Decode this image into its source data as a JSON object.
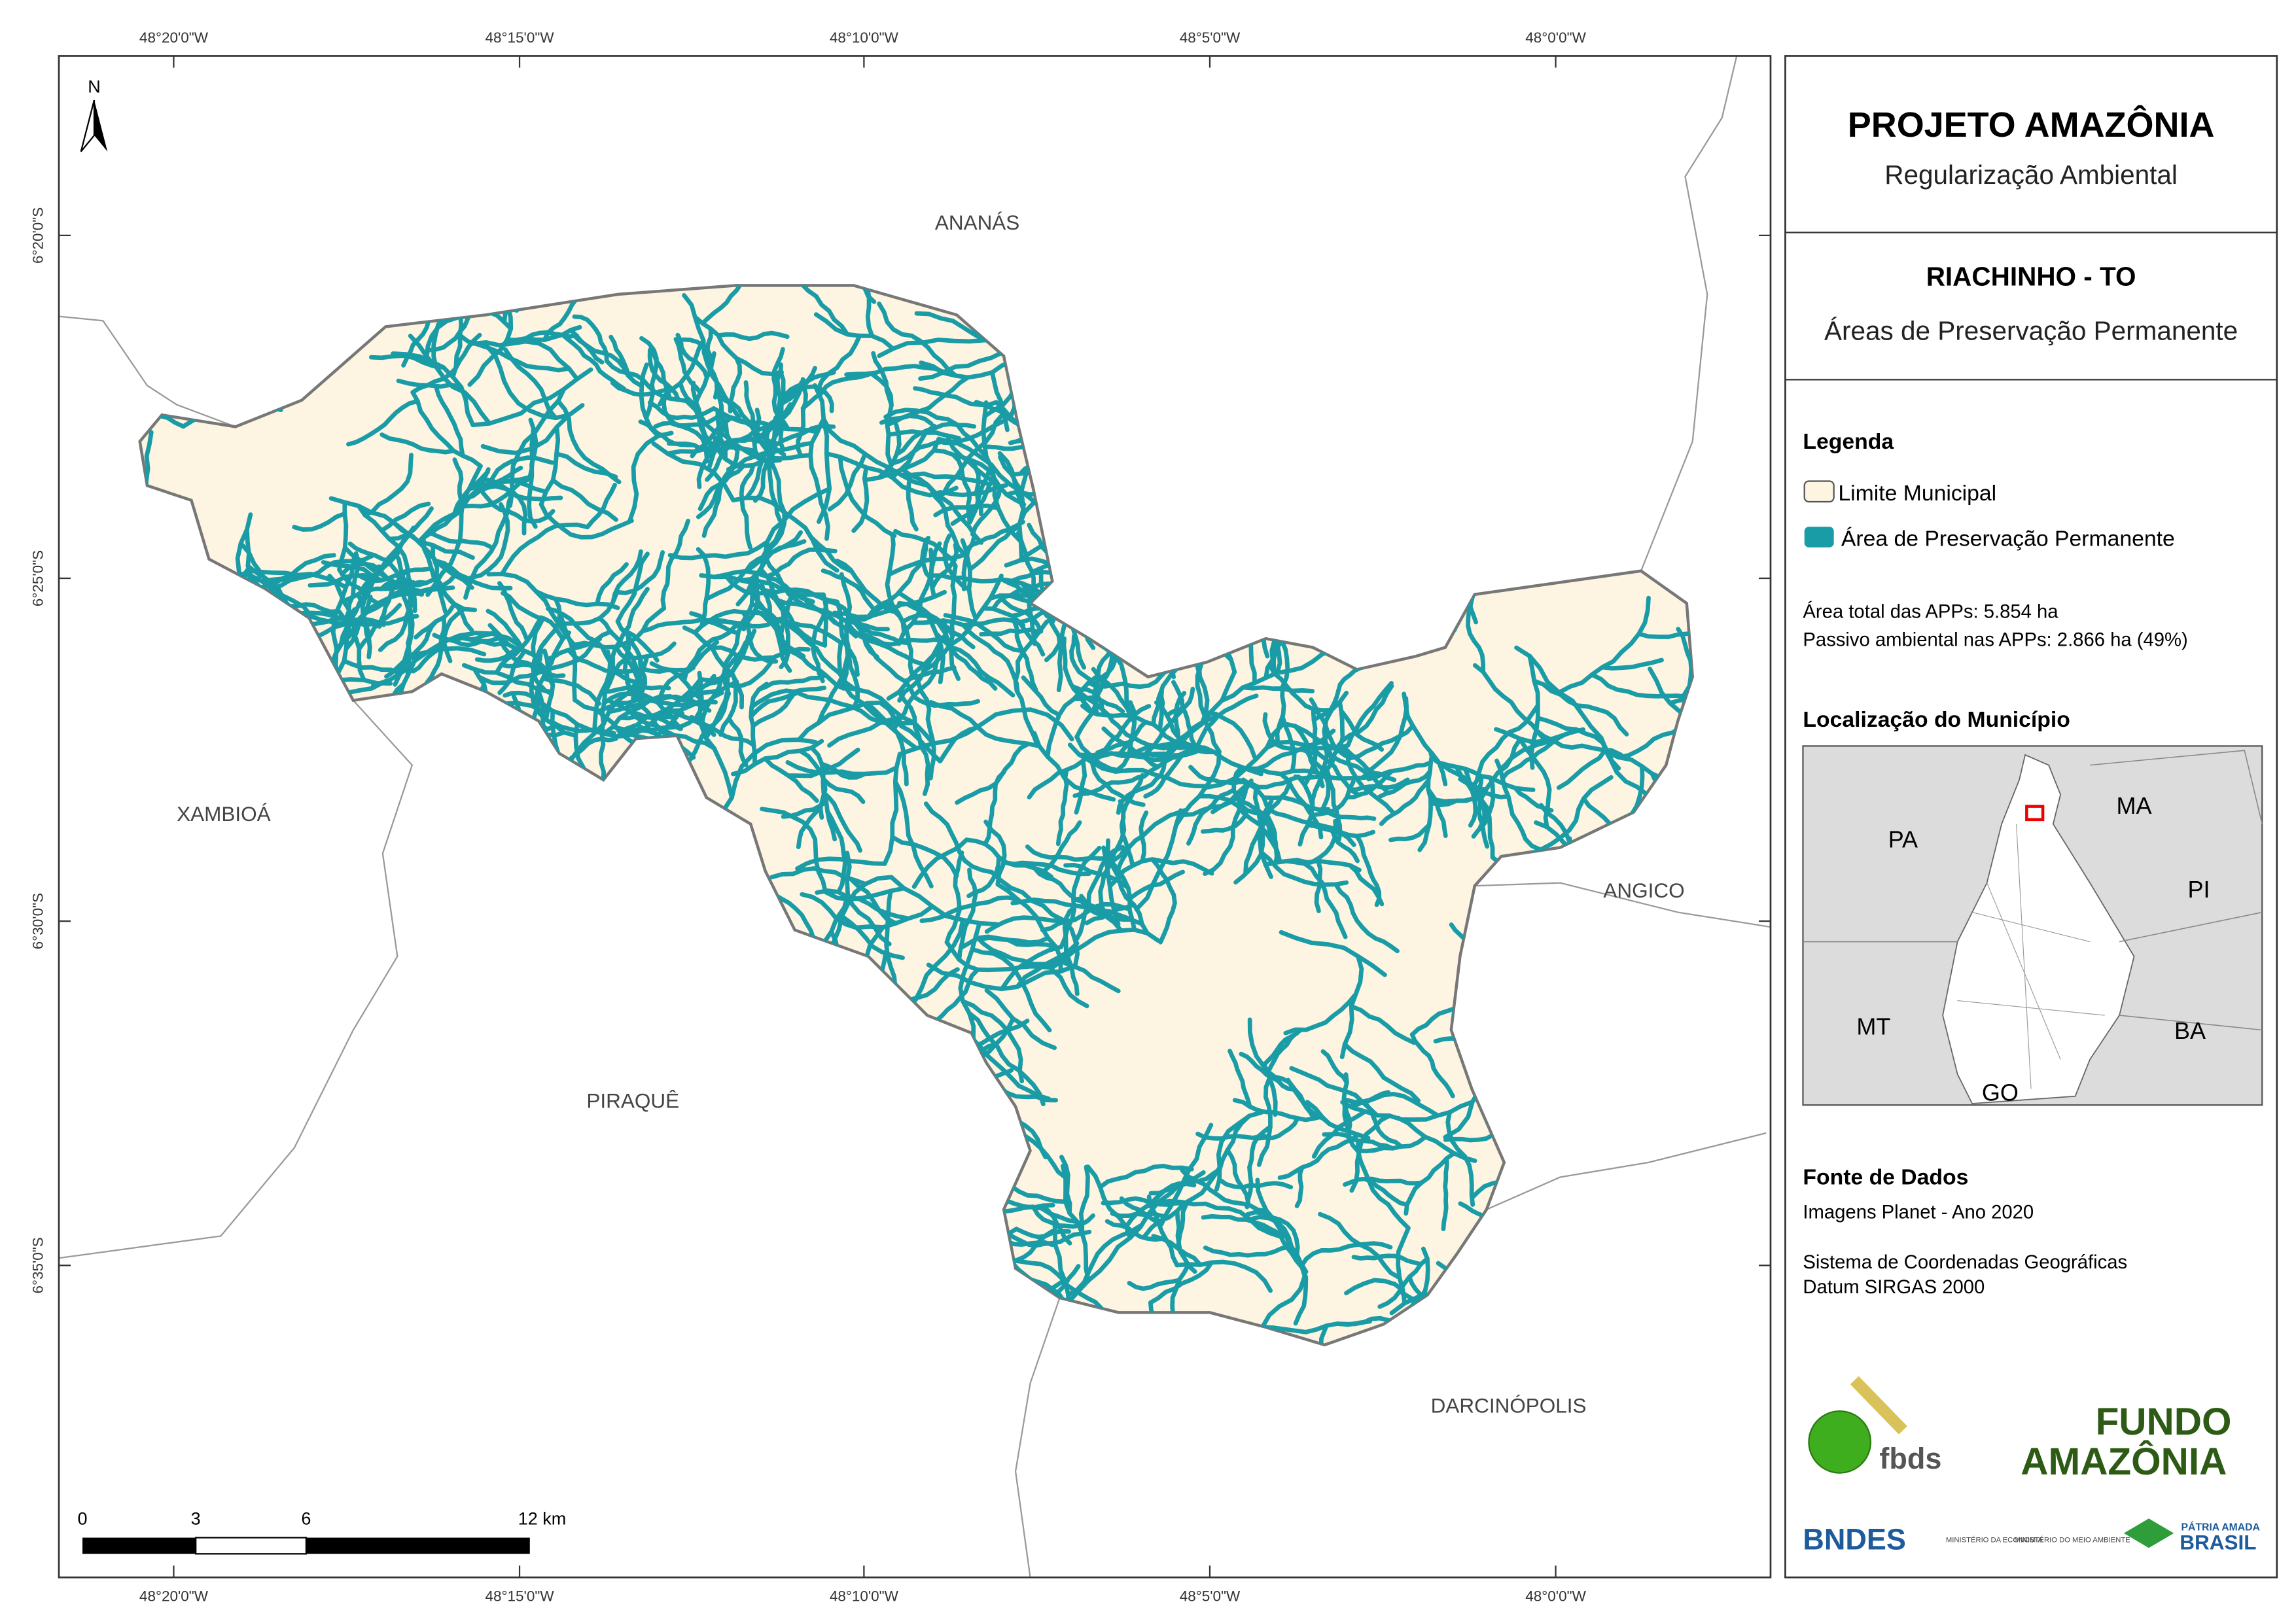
{
  "map": {
    "top_labels": [
      "48°20'0\"W",
      "48°15'0\"W",
      "48°10'0\"W",
      "48°5'0\"W",
      "48°0'0\"W"
    ],
    "bottom_labels": [
      "48°20'0\"W",
      "48°15'0\"W",
      "48°10'0\"W",
      "48°5'0\"W",
      "48°0'0\"W"
    ],
    "left_labels": [
      "6°20'0\"S",
      "6°25'0\"S",
      "6°30'0\"S",
      "6°35'0\"S"
    ],
    "neighbors": [
      "ANANÁS",
      "XAMBIOÁ",
      "ANGICO",
      "PIRAQUÊ",
      "DARCINÓPOLIS"
    ],
    "north": "N",
    "scale_labels": [
      "0",
      "3",
      "6",
      "12 km"
    ]
  },
  "panel": {
    "title": "PROJETO AMAZÔNIA",
    "subtitle": "Regularização Ambiental",
    "municipality": "RIACHINHO - TO",
    "theme": "Áreas de Preservação Permanente",
    "legend_title": "Legenda",
    "legend_items": [
      "Limite Municipal",
      "Área de Preservação Permanente"
    ],
    "stats": [
      "Área total das APPs: 5.854 ha",
      "Passivo ambiental nas APPs: 2.866 ha (49%)"
    ],
    "location_title": "Localização do Município",
    "inset_labels": [
      "PA",
      "MA",
      "PI",
      "MT",
      "BA",
      "GO"
    ],
    "source_title": "Fonte de Dados",
    "source_lines": [
      "Imagens Planet - Ano 2020",
      "Sistema de Coordenadas Geográficas",
      "Datum SIRGAS 2000"
    ],
    "logos": [
      "fbds",
      "FUNDO",
      "AMAZÔNIA",
      "BNDES",
      "MINISTÉRIO DA ECONOMIA",
      "MINISTÉRIO DO MEIO AMBIENTE",
      "PÁTRIA AMADA",
      "BRASIL"
    ]
  }
}
